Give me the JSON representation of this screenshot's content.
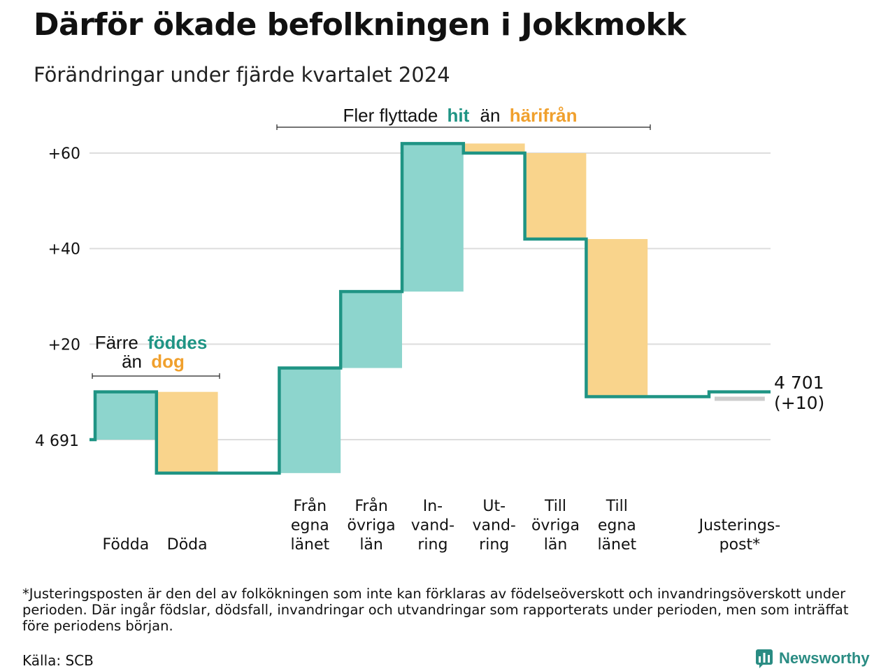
{
  "header": {
    "title": "Därför ökade befolkningen i Jokkmokk",
    "subtitle": "Förändringar under fjärde kvartalet 2024"
  },
  "annotations": {
    "top": {
      "prefix": "Fler flyttade",
      "hit": "hit",
      "middle": "än",
      "harifran": "härifrån"
    },
    "left": {
      "prefix": "Färre",
      "fodde": "föddes",
      "middle": "än",
      "dog": "dog"
    }
  },
  "end_label": {
    "line1": "4 701",
    "line2": "(+10)"
  },
  "footer": {
    "footnote": "*Justeringsposten är den del av folkökningen som inte kan förklaras av födelseöverskott och invandringsöverskott under perioden. Där ingår födslar, dödsfall, invandringar och utvandringar som rapporterats under perioden, men som inträffat före periodens början.",
    "source": "Källa: SCB",
    "brand": "Newsworthy"
  },
  "colors": {
    "increase": "#8dd5cd",
    "decrease": "#f9d48c",
    "adjustment": "#cccccc",
    "line": "#1f9484",
    "hit_text": "#1f9484",
    "harifran_text": "#f0a02d",
    "grid": "#dddddd"
  },
  "chart_data": {
    "type": "waterfall",
    "title": "Därför ökade befolkningen i Jokkmokk",
    "subtitle": "Förändringar under fjärde kvartalet 2024",
    "start_value": 4691,
    "start_label": "4 691",
    "end_value": 4701,
    "y_ticks": [
      {
        "value": 20,
        "label": "+20"
      },
      {
        "value": 40,
        "label": "+40"
      },
      {
        "value": 60,
        "label": "+60"
      }
    ],
    "ylim": [
      -8,
      62
    ],
    "grid": true,
    "categories": [
      {
        "label": [
          "Födda"
        ],
        "change": 10,
        "kind": "increase"
      },
      {
        "label": [
          "Döda"
        ],
        "change": -17,
        "kind": "decrease"
      },
      {
        "label": [],
        "change": 0,
        "kind": "gap"
      },
      {
        "label": [
          "Från",
          "egna",
          "länet"
        ],
        "change": 22,
        "kind": "increase"
      },
      {
        "label": [
          "Från",
          "övriga",
          "län"
        ],
        "change": 16,
        "kind": "increase"
      },
      {
        "label": [
          "In-",
          "vand-",
          "ring"
        ],
        "change": 31,
        "kind": "increase"
      },
      {
        "label": [
          "Ut-",
          "vand-",
          "ring"
        ],
        "change": -2,
        "kind": "decrease"
      },
      {
        "label": [
          "Till",
          "övriga",
          "län"
        ],
        "change": -18,
        "kind": "decrease"
      },
      {
        "label": [
          "Till",
          "egna",
          "länet"
        ],
        "change": -33,
        "kind": "decrease"
      },
      {
        "label": [],
        "change": 0,
        "kind": "gap"
      },
      {
        "label": [
          "Justerings-",
          "post*"
        ],
        "change": 1,
        "kind": "adjustment"
      }
    ]
  }
}
